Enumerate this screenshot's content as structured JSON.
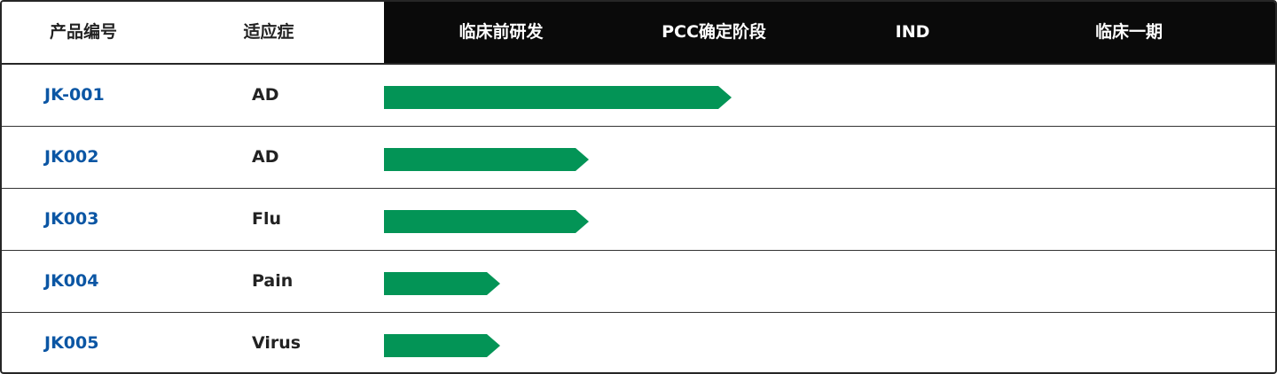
{
  "header": {
    "columns": [
      "产品编号",
      "适应症"
    ],
    "stages": [
      "临床前研发",
      "PCC确定阶段",
      "IND",
      "临床一期"
    ]
  },
  "colors": {
    "bar": "#039456",
    "code": "#0b56a4",
    "header_dark": "#0a0a0a"
  },
  "rows": [
    {
      "code": "JK-001",
      "indication": "AD",
      "progress_percent": 39
    },
    {
      "code": "JK002",
      "indication": "AD",
      "progress_percent": 23
    },
    {
      "code": "JK003",
      "indication": "Flu",
      "progress_percent": 23
    },
    {
      "code": "JK004",
      "indication": "Pain",
      "progress_percent": 13
    },
    {
      "code": "JK005",
      "indication": "Virus",
      "progress_percent": 13
    }
  ]
}
